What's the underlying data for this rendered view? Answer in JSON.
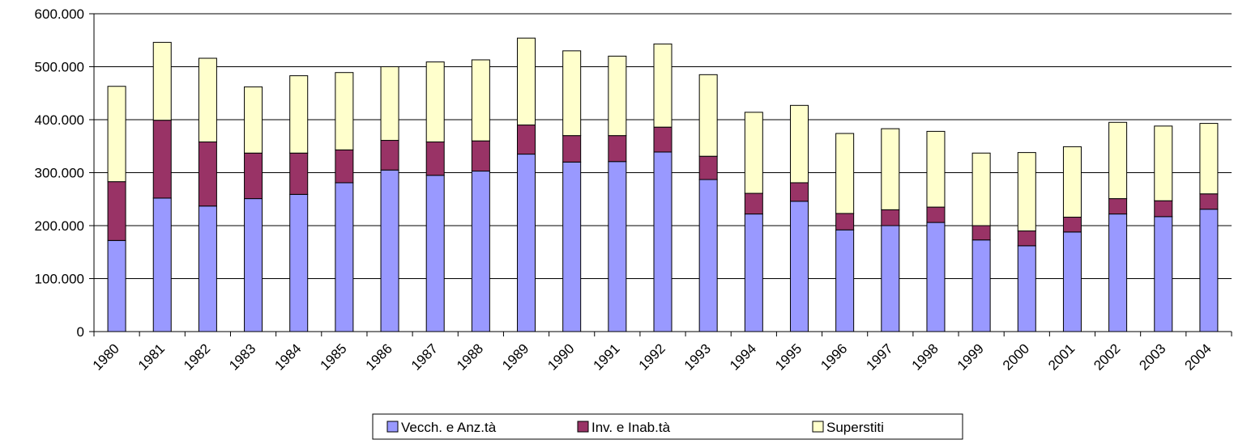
{
  "chart_data": {
    "type": "bar",
    "stacked": true,
    "title": "",
    "xlabel": "",
    "ylabel": "",
    "categories": [
      "1980",
      "1981",
      "1982",
      "1983",
      "1984",
      "1985",
      "1986",
      "1987",
      "1988",
      "1989",
      "1990",
      "1991",
      "1992",
      "1993",
      "1994",
      "1995",
      "1996",
      "1997",
      "1998",
      "1999",
      "2000",
      "2001",
      "2002",
      "2003",
      "2004"
    ],
    "series": [
      {
        "name": "Vecch. e Anz.tà",
        "color": "#9999ff",
        "values": [
          172000,
          252000,
          237000,
          251000,
          259000,
          281000,
          305000,
          295000,
          303000,
          335000,
          320000,
          321000,
          339000,
          287000,
          222000,
          246000,
          192000,
          200000,
          206000,
          173000,
          162000,
          188000,
          222000,
          217000,
          231000
        ]
      },
      {
        "name": "Inv. e Inab.tà",
        "color": "#993366",
        "values": [
          111000,
          147000,
          121000,
          86000,
          78000,
          62000,
          56000,
          63000,
          57000,
          55000,
          50000,
          49000,
          47000,
          44000,
          39000,
          35000,
          31000,
          30000,
          29000,
          27000,
          28000,
          28000,
          29000,
          30000,
          29000
        ]
      },
      {
        "name": "Superstiti",
        "color": "#ffffcc",
        "values": [
          180000,
          147000,
          158000,
          125000,
          146000,
          146000,
          139000,
          151000,
          153000,
          164000,
          160000,
          150000,
          157000,
          154000,
          153000,
          146000,
          151000,
          153000,
          143000,
          137000,
          148000,
          133000,
          144000,
          141000,
          133000
        ]
      }
    ],
    "yticks": [
      "0",
      "100.000",
      "200.000",
      "300.000",
      "400.000",
      "500.000",
      "600.000"
    ],
    "ylim": [
      0,
      600000
    ],
    "grid": true,
    "legend_position": "bottom-center"
  }
}
